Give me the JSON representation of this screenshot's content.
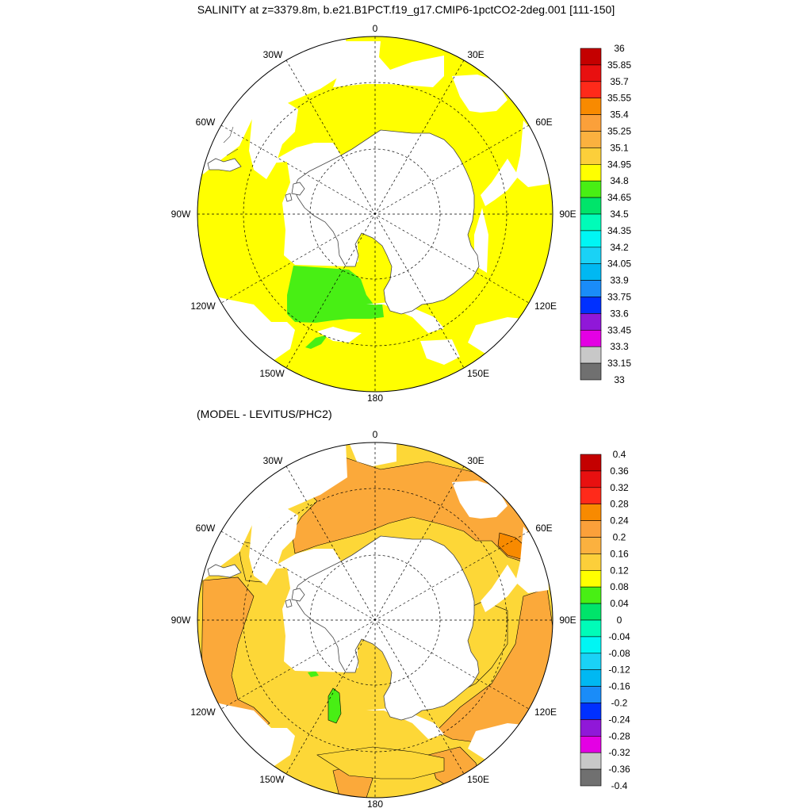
{
  "title": "SALINITY at z=3379.8m, b.e21.B1PCT.f19_g17.CMIP6-1pctCO2-2deg.001 [111-150]",
  "subtitle": "(MODEL - LEVITUS/PHC2)",
  "longitude_labels": {
    "lon_0": "0",
    "lon_30e": "30E",
    "lon_60e": "60E",
    "lon_90e": "90E",
    "lon_120e": "120E",
    "lon_150e": "150E",
    "lon_180": "180",
    "lon_150w": "150W",
    "lon_120w": "120W",
    "lon_90w": "90W",
    "lon_60w": "60W",
    "lon_30w": "30W"
  },
  "top_colorbar": {
    "labels": [
      "36",
      "35.85",
      "35.7",
      "35.55",
      "35.4",
      "35.25",
      "35.1",
      "34.95",
      "34.8",
      "34.65",
      "34.5",
      "34.35",
      "34.2",
      "34.05",
      "33.9",
      "33.75",
      "33.6",
      "33.45",
      "33.3",
      "33.15",
      "33"
    ],
    "colors": [
      "#c40000",
      "#e81010",
      "#ff2a1a",
      "#f88a00",
      "#fba03a",
      "#fbb13f",
      "#fccf3a",
      "#ffff00",
      "#48ef14",
      "#00e46a",
      "#00fcb8",
      "#00f6f4",
      "#1ad2f6",
      "#00b8f2",
      "#1a8cf8",
      "#0030ff",
      "#9018d8",
      "#e400e4",
      "#c8c8c8",
      "#707070"
    ]
  },
  "bottom_colorbar": {
    "labels": [
      "0.4",
      "0.36",
      "0.32",
      "0.28",
      "0.24",
      "0.2",
      "0.16",
      "0.12",
      "0.08",
      "0.04",
      "0",
      "-0.04",
      "-0.08",
      "-0.12",
      "-0.16",
      "-0.2",
      "-0.24",
      "-0.28",
      "-0.32",
      "-0.36",
      "-0.4"
    ],
    "colors": [
      "#c40000",
      "#e81010",
      "#ff2a1a",
      "#f88a00",
      "#fba03a",
      "#fbb13f",
      "#fccf3a",
      "#ffff00",
      "#48ef14",
      "#00e46a",
      "#00fcb8",
      "#00f6f4",
      "#1ad2f6",
      "#00b8f2",
      "#1a8cf8",
      "#0030ff",
      "#9018d8",
      "#e400e4",
      "#c8c8c8",
      "#707070"
    ]
  },
  "colors": {
    "salinity_main": "#ffff00",
    "salinity_low": "#48ef14",
    "anomaly_orange": "#fba93a",
    "anomaly_yellow": "#fdd737",
    "anomaly_dark_orange": "#f88a00",
    "land": "#ffffff"
  }
}
